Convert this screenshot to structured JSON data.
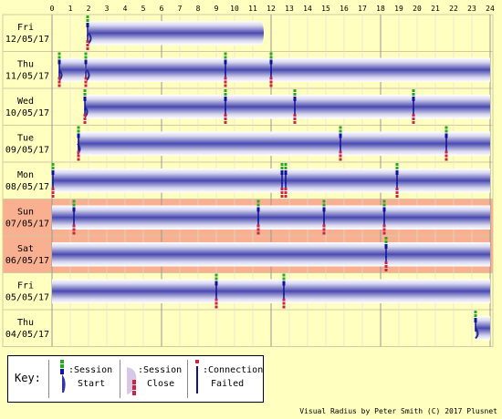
{
  "key": {
    "title": "Key:",
    "start_a": ":Session",
    "start_b": "Start",
    "close_a": ":Session",
    "close_b": "Close",
    "fail_a": ":Connection",
    "fail_b": "Failed"
  },
  "credit": "Visual Radius by Peter Smith (C) 2017 Plusnet",
  "chart_data": {
    "type": "timeline",
    "x_range": [
      0,
      24
    ],
    "x_ticks": [
      "0",
      "1",
      "2",
      "3",
      "4",
      "5",
      "6",
      "7",
      "8",
      "9",
      "10",
      "11",
      "12",
      "13",
      "14",
      "15",
      "16",
      "17",
      "18",
      "19",
      "20",
      "21",
      "22",
      "23",
      "24"
    ],
    "grid": true,
    "rows": [
      {
        "day": "Fri",
        "date": "12/05/17",
        "weekend": false,
        "sessions": [
          [
            2.0,
            11.4
          ]
        ],
        "markers": [
          {
            "t": 1.95,
            "type": "start"
          },
          {
            "t": 1.95,
            "type": "fail"
          }
        ]
      },
      {
        "day": "Thu",
        "date": "11/05/17",
        "weekend": false,
        "sessions": [
          [
            0.4,
            1.6
          ],
          [
            1.9,
            24
          ]
        ],
        "markers": [
          {
            "t": 0.4,
            "type": "start"
          },
          {
            "t": 0.4,
            "type": "fail"
          },
          {
            "t": 1.85,
            "type": "start"
          },
          {
            "t": 1.85,
            "type": "fail"
          },
          {
            "t": 9.5,
            "type": "start"
          },
          {
            "t": 9.5,
            "type": "fail"
          },
          {
            "t": 12.0,
            "type": "start"
          },
          {
            "t": 12.0,
            "type": "fail"
          }
        ]
      },
      {
        "day": "Wed",
        "date": "10/05/17",
        "weekend": false,
        "sessions": [
          [
            1.8,
            24
          ]
        ],
        "markers": [
          {
            "t": 1.8,
            "type": "start"
          },
          {
            "t": 1.8,
            "type": "fail"
          },
          {
            "t": 9.5,
            "type": "start"
          },
          {
            "t": 9.5,
            "type": "fail"
          },
          {
            "t": 13.3,
            "type": "start"
          },
          {
            "t": 13.3,
            "type": "fail"
          },
          {
            "t": 19.8,
            "type": "start"
          },
          {
            "t": 19.8,
            "type": "fail"
          }
        ]
      },
      {
        "day": "Tue",
        "date": "09/05/17",
        "weekend": false,
        "sessions": [
          [
            1.4,
            24
          ]
        ],
        "markers": [
          {
            "t": 1.45,
            "type": "start"
          },
          {
            "t": 1.45,
            "type": "fail"
          },
          {
            "t": 15.8,
            "type": "start"
          },
          {
            "t": 15.8,
            "type": "fail"
          },
          {
            "t": 21.6,
            "type": "start"
          },
          {
            "t": 21.6,
            "type": "fail"
          }
        ]
      },
      {
        "day": "Mon",
        "date": "08/05/17",
        "weekend": false,
        "sessions": [
          [
            0,
            24
          ]
        ],
        "markers": [
          {
            "t": 0.05,
            "type": "start"
          },
          {
            "t": 0.05,
            "type": "fail"
          },
          {
            "t": 12.6,
            "type": "start"
          },
          {
            "t": 12.6,
            "type": "fail"
          },
          {
            "t": 12.8,
            "type": "start"
          },
          {
            "t": 12.8,
            "type": "fail"
          },
          {
            "t": 18.9,
            "type": "start"
          },
          {
            "t": 18.9,
            "type": "fail"
          }
        ]
      },
      {
        "day": "Sun",
        "date": "07/05/17",
        "weekend": true,
        "sessions": [
          [
            0,
            24
          ]
        ],
        "markers": [
          {
            "t": 1.2,
            "type": "start"
          },
          {
            "t": 1.2,
            "type": "fail"
          },
          {
            "t": 11.3,
            "type": "start"
          },
          {
            "t": 11.3,
            "type": "fail"
          },
          {
            "t": 14.9,
            "type": "start"
          },
          {
            "t": 14.9,
            "type": "fail"
          },
          {
            "t": 18.2,
            "type": "start"
          },
          {
            "t": 18.2,
            "type": "fail"
          }
        ]
      },
      {
        "day": "Sat",
        "date": "06/05/17",
        "weekend": true,
        "sessions": [
          [
            0,
            24
          ]
        ],
        "markers": [
          {
            "t": 18.3,
            "type": "start"
          },
          {
            "t": 18.3,
            "type": "fail"
          }
        ]
      },
      {
        "day": "Fri",
        "date": "05/05/17",
        "weekend": false,
        "sessions": [
          [
            0,
            24
          ]
        ],
        "markers": [
          {
            "t": 9.0,
            "type": "start"
          },
          {
            "t": 9.0,
            "type": "fail"
          },
          {
            "t": 12.7,
            "type": "start"
          },
          {
            "t": 12.7,
            "type": "fail"
          }
        ]
      },
      {
        "day": "Thu",
        "date": "04/05/17",
        "weekend": false,
        "sessions": [
          [
            23.2,
            24
          ]
        ],
        "markers": [
          {
            "t": 23.2,
            "type": "start"
          }
        ]
      }
    ]
  }
}
